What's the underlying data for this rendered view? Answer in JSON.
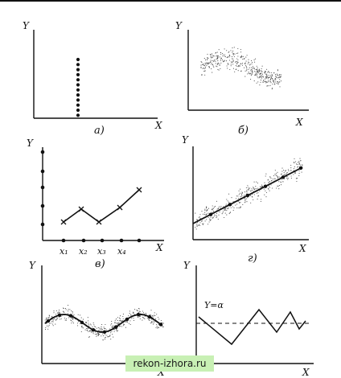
{
  "panels": [
    {
      "id": "a",
      "caption": "а)",
      "x_axis": "X",
      "y_axis": "Y"
    },
    {
      "id": "b",
      "caption": "б)",
      "x_axis": "X",
      "y_axis": "Y"
    },
    {
      "id": "v",
      "caption": "в)",
      "x_axis": "X",
      "y_axis": "Y",
      "x_ticks": [
        "x₁",
        "x₂",
        "x₃",
        "x₄"
      ]
    },
    {
      "id": "g",
      "caption": "г)",
      "x_axis": "X",
      "y_axis": "Y"
    },
    {
      "id": "d",
      "caption": "",
      "x_axis": "X",
      "y_axis": "Y"
    },
    {
      "id": "e",
      "caption": "",
      "x_axis": "X",
      "y_axis": "Y",
      "line_label": "Y=α"
    }
  ],
  "watermark": "rekon-izhora.ru",
  "colors": {
    "ink": "#111111",
    "stipple": "#444444",
    "watermark_bg": "#c8f0b4"
  }
}
